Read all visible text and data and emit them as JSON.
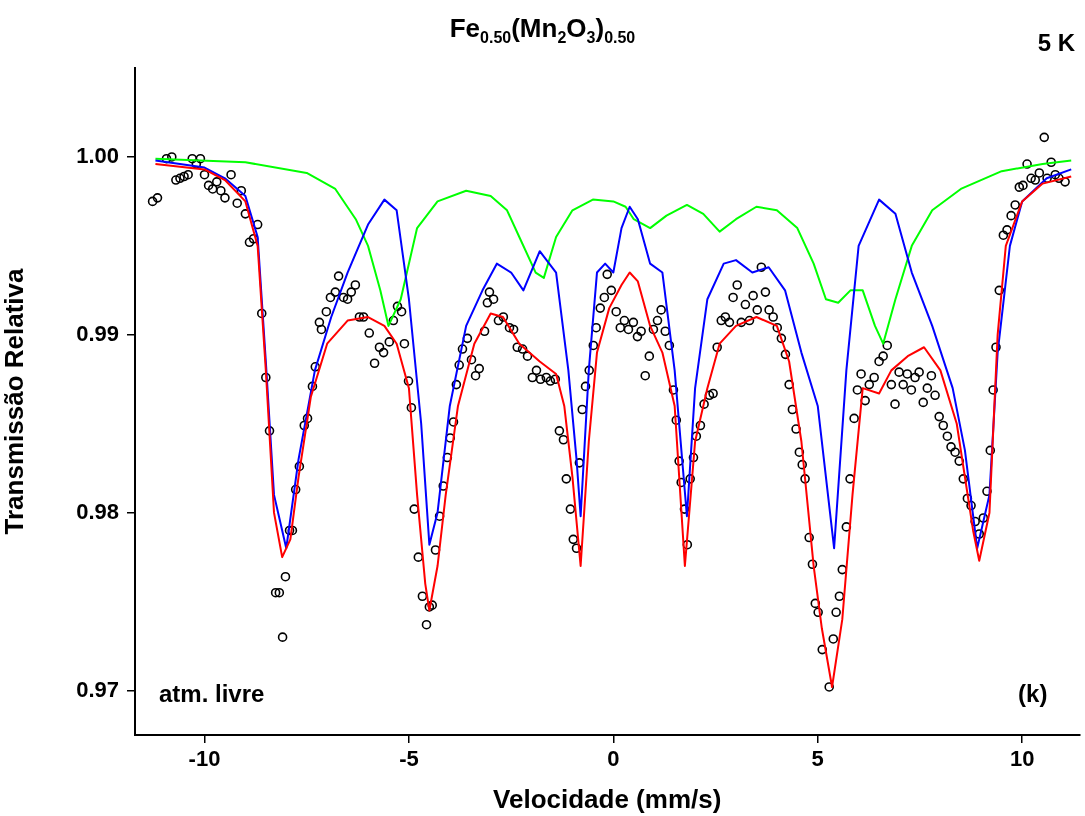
{
  "chart_data": {
    "type": "scatter",
    "title": "Fe$_{0.50}$(Mn$_{2}$O$_{3}$)$_{0.50}$",
    "xlabel": "Velocidade (mm/s)",
    "ylabel": "Transmissão Relativa",
    "annotations": [
      "5 K",
      "atm. livre",
      "(k)"
    ],
    "xlim": [
      -11.7,
      11.4
    ],
    "ylim": [
      0.9675,
      1.005
    ],
    "xticks": [
      -10,
      -5,
      0,
      5,
      10
    ],
    "yticks": [
      0.97,
      0.98,
      0.99,
      {
        "value": 1,
        "label": "1.00"
      }
    ],
    "grid": false,
    "legend": false,
    "series": [
      {
        "marker": "circle",
        "color": "#000000",
        "x": [
          -11.27,
          -11.15,
          -10.93,
          -10.8,
          -10.7,
          -10.6,
          -10.5,
          -10.4,
          -10.3,
          -10.2,
          -10.1,
          -10.0,
          -9.9,
          -9.8,
          -9.7,
          -9.6,
          -9.5,
          -9.35,
          -9.2,
          -9.1,
          -9.0,
          -8.9,
          -8.8,
          -8.7,
          -8.6,
          -8.5,
          -8.41,
          -8.26,
          -8.17,
          -8.09,
          -8.02,
          -7.92,
          -7.85,
          -7.77,
          -7.68,
          -7.56,
          -7.48,
          -7.36,
          -7.29,
          -7.19,
          -7.14,
          -7.02,
          -6.92,
          -6.8,
          -6.72,
          -6.6,
          -6.5,
          -6.41,
          -6.31,
          -6.21,
          -6.11,
          -5.97,
          -5.84,
          -5.72,
          -5.62,
          -5.48,
          -5.38,
          -5.28,
          -5.18,
          -5.11,
          -5.01,
          -4.94,
          -4.87,
          -4.77,
          -4.67,
          -4.57,
          -4.5,
          -4.43,
          -4.35,
          -4.25,
          -4.16,
          -4.06,
          -3.99,
          -3.91,
          -3.84,
          -3.77,
          -3.69,
          -3.57,
          -3.47,
          -3.37,
          -3.28,
          -3.15,
          -3.08,
          -3.03,
          -2.93,
          -2.81,
          -2.69,
          -2.54,
          -2.44,
          -2.35,
          -2.22,
          -2.1,
          -1.98,
          -1.88,
          -1.78,
          -1.64,
          -1.54,
          -1.42,
          -1.32,
          -1.22,
          -1.15,
          -1.05,
          -0.98,
          -0.9,
          -0.83,
          -0.76,
          -0.68,
          -0.59,
          -0.49,
          -0.42,
          -0.32,
          -0.22,
          -0.15,
          -0.05,
          0.07,
          0.17,
          0.27,
          0.37,
          0.49,
          0.59,
          0.68,
          0.78,
          0.88,
          0.98,
          1.08,
          1.17,
          1.27,
          1.37,
          1.47,
          1.54,
          1.61,
          1.66,
          1.74,
          1.81,
          1.88,
          1.96,
          2.03,
          2.13,
          2.22,
          2.35,
          2.44,
          2.54,
          2.64,
          2.74,
          2.84,
          2.93,
          3.03,
          3.13,
          3.23,
          3.33,
          3.42,
          3.52,
          3.62,
          3.72,
          3.81,
          3.91,
          4.01,
          4.11,
          4.21,
          4.3,
          4.38,
          4.47,
          4.55,
          4.62,
          4.69,
          4.79,
          4.87,
          4.94,
          5.01,
          5.11,
          5.28,
          5.38,
          5.45,
          5.53,
          5.6,
          5.7,
          5.79,
          5.89,
          5.97,
          6.06,
          6.16,
          6.26,
          6.38,
          6.5,
          6.6,
          6.7,
          6.8,
          6.89,
          6.99,
          7.09,
          7.19,
          7.29,
          7.38,
          7.48,
          7.58,
          7.68,
          7.78,
          7.87,
          7.97,
          8.07,
          8.17,
          8.26,
          8.36,
          8.46,
          8.56,
          8.66,
          8.75,
          8.85,
          8.95,
          9.05,
          9.14,
          9.22,
          9.29,
          9.36,
          9.44,
          9.54,
          9.63,
          9.73,
          9.83,
          9.93,
          10.02,
          10.12,
          10.22,
          10.32,
          10.42,
          10.54,
          10.61,
          10.71,
          10.81,
          10.9,
          11.05
        ],
        "values": [
          0.9975,
          0.9977,
          0.9999,
          1.0,
          0.9987,
          0.9988,
          0.9989,
          0.999,
          0.9999,
          0.9996,
          0.9999,
          0.999,
          0.9984,
          0.9982,
          0.9986,
          0.9981,
          0.9977,
          0.999,
          0.9974,
          0.9981,
          0.9968,
          0.9952,
          0.9954,
          0.9962,
          0.9912,
          0.9876,
          0.9846,
          0.9755,
          0.9755,
          0.973,
          0.9764,
          0.979,
          0.979,
          0.9813,
          0.9826,
          0.9849,
          0.9853,
          0.9871,
          0.9882,
          0.9907,
          0.9903,
          0.9913,
          0.9921,
          0.9924,
          0.9933,
          0.9921,
          0.992,
          0.9924,
          0.9928,
          0.991,
          0.991,
          0.9901,
          0.9884,
          0.9893,
          0.989,
          0.9896,
          0.9908,
          0.9916,
          0.9913,
          0.9895,
          0.9874,
          0.9859,
          0.9802,
          0.9775,
          0.9753,
          0.9737,
          0.9747,
          0.9748,
          0.9779,
          0.9798,
          0.9815,
          0.9831,
          0.9842,
          0.9851,
          0.9872,
          0.9883,
          0.9892,
          0.9898,
          0.9886,
          0.9877,
          0.9881,
          0.9902,
          0.9918,
          0.9924,
          0.992,
          0.9908,
          0.991,
          0.9904,
          0.9903,
          0.9893,
          0.9892,
          0.9888,
          0.9876,
          0.988,
          0.9875,
          0.9876,
          0.9874,
          0.9875,
          0.9846,
          0.9841,
          0.9819,
          0.9802,
          0.9785,
          0.978,
          0.9828,
          0.9858,
          0.9871,
          0.988,
          0.9894,
          0.9904,
          0.9915,
          0.9921,
          0.9934,
          0.9925,
          0.9913,
          0.9904,
          0.9908,
          0.9903,
          0.9907,
          0.9899,
          0.9902,
          0.9877,
          0.9888,
          0.9903,
          0.9908,
          0.9914,
          0.9902,
          0.9894,
          0.9869,
          0.9852,
          0.9829,
          0.9817,
          0.9802,
          0.9782,
          0.9819,
          0.9831,
          0.9843,
          0.9849,
          0.9861,
          0.9866,
          0.9867,
          0.9893,
          0.9908,
          0.991,
          0.9907,
          0.9921,
          0.9928,
          0.9907,
          0.9917,
          0.9908,
          0.9922,
          0.9914,
          0.9938,
          0.9924,
          0.9914,
          0.991,
          0.9904,
          0.9898,
          0.9889,
          0.9872,
          0.9858,
          0.9847,
          0.9834,
          0.9827,
          0.9819,
          0.9786,
          0.9771,
          0.9749,
          0.9744,
          0.9723,
          0.9702,
          0.9729,
          0.9744,
          0.9753,
          0.9768,
          0.9792,
          0.9819,
          0.9853,
          0.9869,
          0.9878,
          0.9863,
          0.9872,
          0.9876,
          0.9885,
          0.9888,
          0.9894,
          0.9872,
          0.9861,
          0.9879,
          0.9872,
          0.9878,
          0.9869,
          0.9876,
          0.9879,
          0.9862,
          0.987,
          0.9877,
          0.9866,
          0.9854,
          0.9849,
          0.9843,
          0.9837,
          0.9834,
          0.9829,
          0.9819,
          0.9808,
          0.9804,
          0.9795,
          0.9788,
          0.9797,
          0.9812,
          0.9835,
          0.9869,
          0.9893,
          0.9925,
          0.9956,
          0.9959,
          0.9967,
          0.9973,
          0.9983,
          0.9984,
          0.9996,
          0.9988,
          0.9987,
          0.9991,
          1.0011,
          0.9988,
          0.9997,
          0.999,
          0.9988,
          0.9986
        ]
      },
      {
        "type": "line",
        "marker": "none",
        "color": "#ff0000",
        "x": [
          -11.2,
          -10,
          -9.5,
          -9,
          -8.7,
          -8.5,
          -8.3,
          -8.1,
          -7.9,
          -7.7,
          -7.4,
          -7,
          -6.5,
          -6,
          -5.6,
          -5.3,
          -5,
          -4.8,
          -4.6,
          -4.5,
          -4.3,
          -4.1,
          -3.8,
          -3.4,
          -3,
          -2.7,
          -2.3,
          -1.8,
          -1.4,
          -1.2,
          -1,
          -0.8,
          -0.6,
          -0.4,
          -0.1,
          0.2,
          0.4,
          0.6,
          0.9,
          1.2,
          1.5,
          1.75,
          2,
          2.3,
          2.6,
          3,
          3.5,
          4,
          4.3,
          4.6,
          4.9,
          5.1,
          5.35,
          5.6,
          5.85,
          6.1,
          6.5,
          6.8,
          7.2,
          7.6,
          8,
          8.4,
          8.8,
          8.95,
          9.2,
          9.4,
          9.6,
          10,
          10.5,
          11.2
        ],
        "values": [
          0.9996,
          0.9993,
          0.9987,
          0.9975,
          0.995,
          0.988,
          0.98,
          0.9775,
          0.9785,
          0.982,
          0.9865,
          0.9895,
          0.9908,
          0.991,
          0.9905,
          0.9895,
          0.987,
          0.981,
          0.976,
          0.9745,
          0.977,
          0.981,
          0.986,
          0.9895,
          0.9912,
          0.991,
          0.9895,
          0.9885,
          0.9878,
          0.986,
          0.982,
          0.977,
          0.984,
          0.989,
          0.9915,
          0.9928,
          0.9935,
          0.993,
          0.9905,
          0.989,
          0.986,
          0.977,
          0.984,
          0.987,
          0.9895,
          0.9905,
          0.991,
          0.9905,
          0.9885,
          0.984,
          0.977,
          0.9735,
          0.9702,
          0.974,
          0.981,
          0.987,
          0.9867,
          0.988,
          0.9888,
          0.9893,
          0.988,
          0.985,
          0.979,
          0.9773,
          0.98,
          0.99,
          0.995,
          0.9975,
          0.9985,
          0.9989
        ]
      },
      {
        "type": "line",
        "marker": "none",
        "color": "#0000ff",
        "x": [
          -11.2,
          -10,
          -9.5,
          -9,
          -8.7,
          -8.5,
          -8.3,
          -8,
          -7.7,
          -7.3,
          -6.9,
          -6.5,
          -6,
          -5.6,
          -5.3,
          -5,
          -4.7,
          -4.5,
          -4.3,
          -4,
          -3.6,
          -3.2,
          -2.85,
          -2.5,
          -2.2,
          -1.8,
          -1.4,
          -1.1,
          -0.9,
          -0.8,
          -0.6,
          -0.4,
          -0.2,
          0,
          0.2,
          0.4,
          0.6,
          0.9,
          1.2,
          1.5,
          1.8,
          2,
          2.3,
          2.7,
          3,
          3.4,
          3.8,
          4.2,
          4.6,
          5,
          5.4,
          5.7,
          6,
          6.5,
          6.9,
          7.3,
          7.8,
          8.3,
          8.6,
          8.9,
          9.2,
          9.4,
          9.7,
          10,
          10.6,
          11.2
        ],
        "values": [
          0.9998,
          0.9994,
          0.9988,
          0.9978,
          0.9955,
          0.9885,
          0.981,
          0.978,
          0.983,
          0.988,
          0.991,
          0.9935,
          0.9962,
          0.9976,
          0.997,
          0.992,
          0.985,
          0.9782,
          0.98,
          0.986,
          0.9905,
          0.9925,
          0.994,
          0.9935,
          0.9925,
          0.9947,
          0.9935,
          0.988,
          0.983,
          0.9798,
          0.988,
          0.9935,
          0.994,
          0.9935,
          0.996,
          0.9972,
          0.9965,
          0.994,
          0.9935,
          0.988,
          0.9798,
          0.987,
          0.992,
          0.994,
          0.9942,
          0.9935,
          0.9938,
          0.9925,
          0.989,
          0.986,
          0.978,
          0.988,
          0.995,
          0.9976,
          0.9968,
          0.9935,
          0.9905,
          0.987,
          0.9835,
          0.978,
          0.981,
          0.989,
          0.995,
          0.9975,
          0.9988,
          0.9993
        ]
      },
      {
        "type": "line",
        "marker": "none",
        "color": "#00ff00",
        "x": [
          -11.2,
          -9,
          -7.5,
          -6.8,
          -6.3,
          -6,
          -5.7,
          -5.5,
          -5.2,
          -4.8,
          -4.3,
          -3.6,
          -3,
          -2.6,
          -2.3,
          -1.9,
          -1.7,
          -1.4,
          -1,
          -0.5,
          0,
          0.3,
          0.5,
          0.9,
          1.3,
          1.8,
          2.2,
          2.6,
          3,
          3.5,
          4,
          4.5,
          4.9,
          5.2,
          5.5,
          5.8,
          6.1,
          6.4,
          6.6,
          6.9,
          7.3,
          7.8,
          8.5,
          9.5,
          10.5,
          11.2
        ],
        "values": [
          0.9999,
          0.9997,
          0.9991,
          0.9982,
          0.9965,
          0.995,
          0.9925,
          0.9905,
          0.992,
          0.996,
          0.9975,
          0.9981,
          0.9978,
          0.997,
          0.9955,
          0.9935,
          0.9932,
          0.9955,
          0.997,
          0.9976,
          0.9975,
          0.9972,
          0.9965,
          0.996,
          0.9967,
          0.9973,
          0.9968,
          0.9958,
          0.9965,
          0.9972,
          0.997,
          0.996,
          0.994,
          0.992,
          0.9918,
          0.9925,
          0.9925,
          0.9905,
          0.9895,
          0.992,
          0.995,
          0.997,
          0.9982,
          0.9992,
          0.9996,
          0.9998
        ]
      }
    ]
  }
}
